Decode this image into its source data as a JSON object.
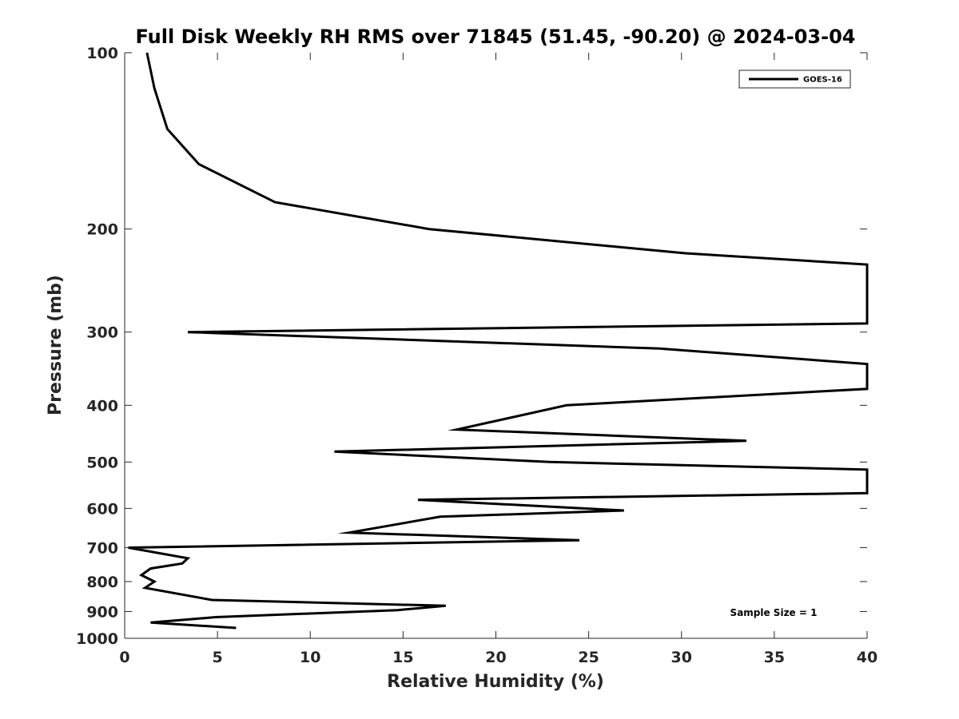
{
  "chart_data": {
    "type": "line",
    "title": "Full Disk Weekly RH RMS over 71845 (51.45, -90.20) @ 2024-03-04",
    "xlabel": "Relative Humidity (%)",
    "ylabel": "Pressure (mb)",
    "xlim": [
      0,
      40
    ],
    "ylim": [
      100,
      1000
    ],
    "y_scale": "log",
    "y_reversed": true,
    "grid": false,
    "legend_placement": "top-right",
    "x_ticks": [
      0,
      5,
      10,
      15,
      20,
      25,
      30,
      35,
      40
    ],
    "y_ticks": [
      100,
      200,
      300,
      400,
      500,
      600,
      700,
      800,
      900,
      1000
    ],
    "annotation": "Sample Size = 1",
    "series": [
      {
        "name": "GOES-16",
        "color": "#000000",
        "points": [
          [
            1.2,
            100
          ],
          [
            1.6,
            115
          ],
          [
            2.3,
            135
          ],
          [
            4.0,
            155
          ],
          [
            8.1,
            180
          ],
          [
            16.4,
            200
          ],
          [
            30.2,
            220
          ],
          [
            40.0,
            230
          ],
          [
            40.0,
            290
          ],
          [
            3.4,
            300
          ],
          [
            28.8,
            320
          ],
          [
            40.0,
            340
          ],
          [
            40.0,
            375
          ],
          [
            23.8,
            400
          ],
          [
            17.9,
            440
          ],
          [
            33.5,
            460
          ],
          [
            11.3,
            480
          ],
          [
            22.9,
            500
          ],
          [
            40.0,
            515
          ],
          [
            40.0,
            565
          ],
          [
            15.8,
            580
          ],
          [
            26.9,
            605
          ],
          [
            17.0,
            620
          ],
          [
            12.1,
            660
          ],
          [
            24.5,
            680
          ],
          [
            0.2,
            700
          ],
          [
            3.4,
            730
          ],
          [
            3.1,
            745
          ],
          [
            1.4,
            760
          ],
          [
            0.9,
            780
          ],
          [
            1.6,
            800
          ],
          [
            1.1,
            820
          ],
          [
            4.7,
            860
          ],
          [
            17.3,
            880
          ],
          [
            14.7,
            895
          ],
          [
            4.9,
            920
          ],
          [
            1.4,
            940
          ],
          [
            6.0,
            960
          ]
        ]
      }
    ]
  }
}
